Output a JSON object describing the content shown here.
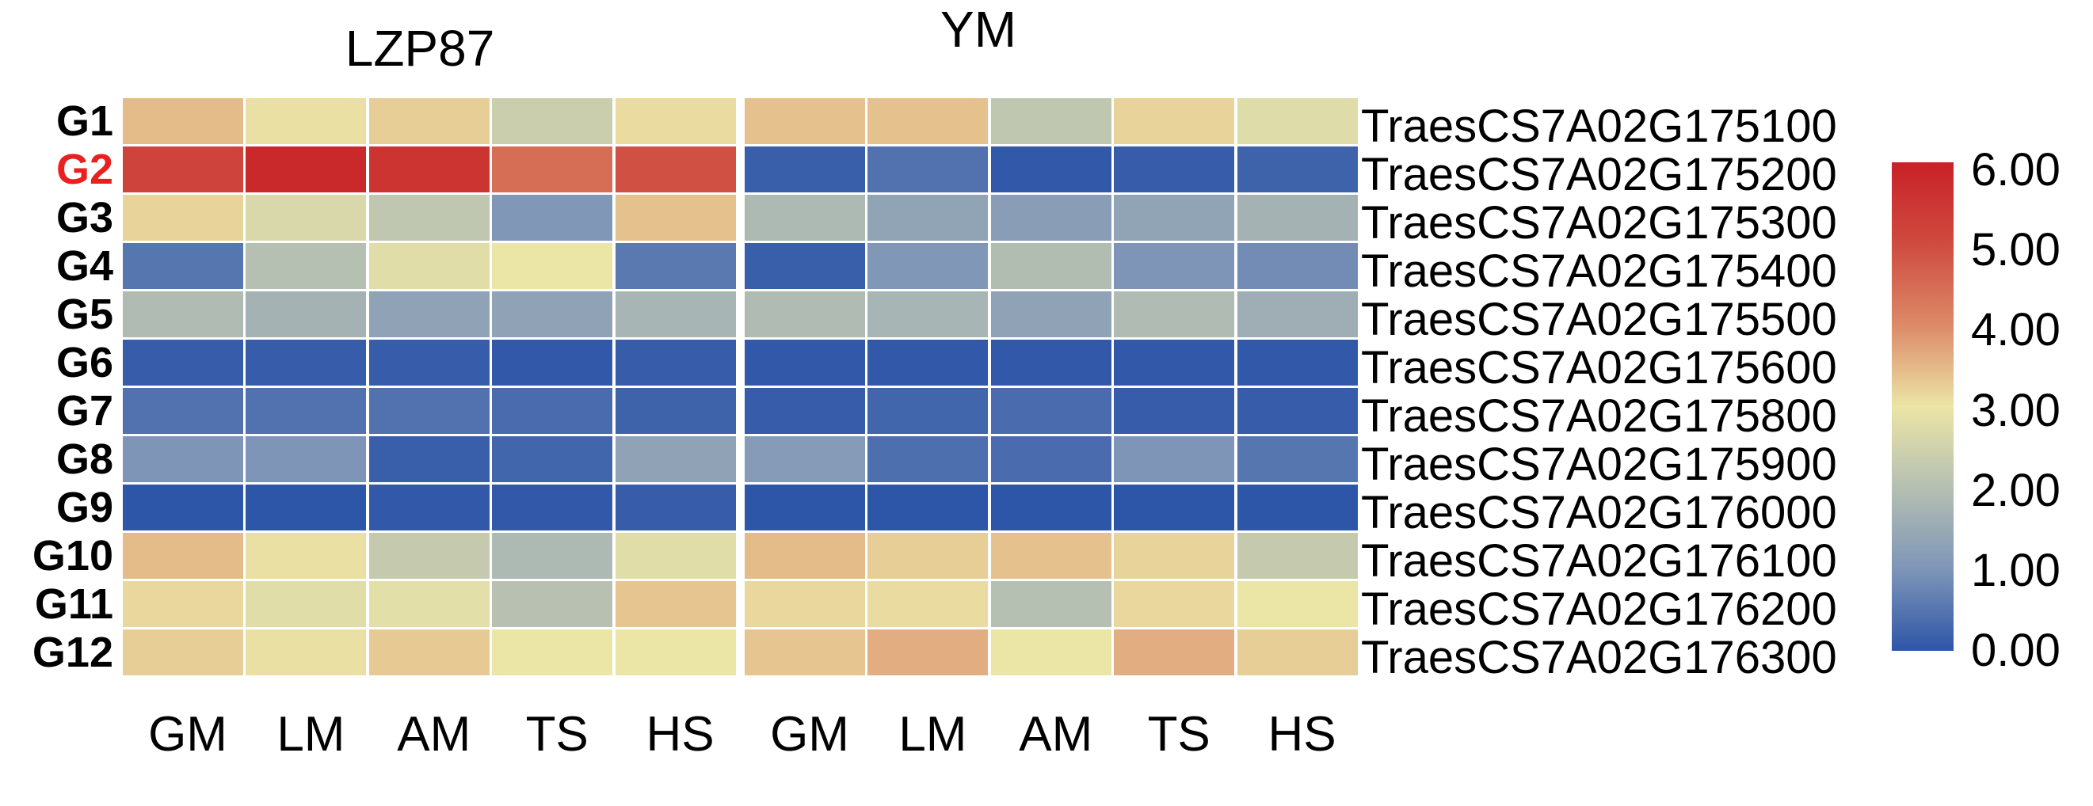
{
  "chart_data": {
    "type": "heatmap",
    "panels": [
      {
        "title": "LZP87",
        "columns": [
          "GM",
          "LM",
          "AM",
          "TS",
          "HS"
        ],
        "values": [
          [
            3.45,
            3.05,
            3.25,
            2.4,
            3.1
          ],
          [
            5.2,
            5.8,
            5.55,
            4.45,
            4.9
          ],
          [
            3.2,
            2.65,
            2.2,
            1.05,
            3.4
          ],
          [
            0.5,
            2.0,
            2.8,
            3.0,
            0.55
          ],
          [
            1.9,
            1.7,
            1.3,
            1.3,
            1.75
          ],
          [
            0.1,
            0.1,
            0.1,
            0.05,
            0.1
          ],
          [
            0.45,
            0.45,
            0.45,
            0.35,
            0.2
          ],
          [
            1.0,
            1.0,
            0.15,
            0.25,
            1.3
          ],
          [
            0.0,
            0.0,
            0.05,
            0.05,
            0.1
          ],
          [
            3.45,
            3.05,
            2.3,
            1.85,
            2.8
          ],
          [
            3.15,
            2.8,
            2.85,
            2.05,
            3.35
          ],
          [
            3.25,
            3.05,
            3.3,
            3.0,
            3.0
          ]
        ]
      },
      {
        "title": "YM",
        "columns": [
          "GM",
          "LM",
          "AM",
          "TS",
          "HS"
        ],
        "values": [
          [
            3.4,
            3.4,
            2.2,
            3.2,
            2.75
          ],
          [
            0.15,
            0.45,
            0.05,
            0.1,
            0.2
          ],
          [
            1.85,
            1.35,
            1.2,
            1.35,
            1.7
          ],
          [
            0.15,
            1.05,
            1.95,
            1.0,
            0.85
          ],
          [
            1.9,
            1.75,
            1.3,
            1.9,
            1.6
          ],
          [
            0.05,
            0.05,
            0.05,
            0.05,
            0.05
          ],
          [
            0.1,
            0.25,
            0.35,
            0.1,
            0.1
          ],
          [
            1.15,
            0.4,
            0.35,
            1.0,
            0.5
          ],
          [
            0.0,
            0.0,
            0.0,
            0.0,
            0.0
          ],
          [
            3.45,
            3.25,
            3.4,
            3.2,
            2.3
          ],
          [
            3.15,
            3.1,
            2.0,
            3.15,
            3.0
          ],
          [
            3.35,
            3.6,
            3.0,
            3.6,
            3.25
          ]
        ]
      }
    ],
    "row_labels": [
      "G1",
      "G2",
      "G3",
      "G4",
      "G5",
      "G6",
      "G7",
      "G8",
      "G9",
      "G10",
      "G11",
      "G12"
    ],
    "gene_labels": [
      "TraesCS7A02G175100",
      "TraesCS7A02G175200",
      "TraesCS7A02G175300",
      "TraesCS7A02G175400",
      "TraesCS7A02G175500",
      "TraesCS7A02G175600",
      "TraesCS7A02G175800",
      "TraesCS7A02G175900",
      "TraesCS7A02G176000",
      "TraesCS7A02G176100",
      "TraesCS7A02G176200",
      "TraesCS7A02G176300"
    ],
    "highlighted_row": {
      "label": "G2",
      "color": "#e8201f"
    },
    "value_range": [
      0,
      6
    ],
    "colorbar": {
      "position": "right",
      "tick_labels": [
        "6.00",
        "5.00",
        "4.00",
        "3.00",
        "2.00",
        "1.00",
        "0.00"
      ],
      "gradient_anchors_low_to_high": [
        "#2e56a8",
        "#7e95b8",
        "#b5bfb2",
        "#ebe5a6",
        "#dc8a68",
        "#cf4b40",
        "#c92127"
      ]
    },
    "cell_border_color": "#ffffff",
    "text_color": "#000000",
    "background": "#ffffff"
  }
}
